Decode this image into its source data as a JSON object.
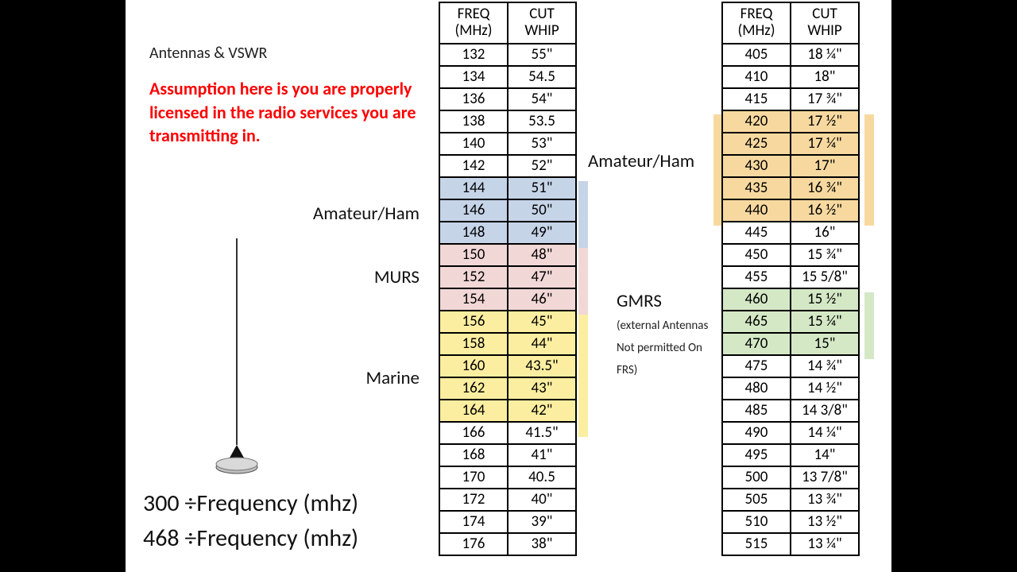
{
  "page": {
    "heading": "Antennas & VSWR",
    "warning": "Assumption here is you are properly licensed in the radio services you are transmitting in.",
    "formula1": "300 ÷Frequency (mhz)",
    "formula2": "468 ÷Frequency (mhz)"
  },
  "labels": {
    "amateur1": "Amateur/Ham",
    "murs": "MURS",
    "marine": "Marine",
    "amateur2": "Amateur/Ham",
    "gmrs": "GMRS",
    "gmrs_sub": "(external Antennas Not permitted On FRS)"
  },
  "table_headers": {
    "freq": "FREQ (MHz)",
    "cut": "CUT WHIP"
  },
  "colors": {
    "bg_page": "#ffffff",
    "bg_letterbox": "#000000",
    "warning_text": "#ff0000",
    "hl_blue": "#c6d4e8",
    "hl_pink": "#f2d7d7",
    "hl_yellow": "#fceea0",
    "hl_orange": "#f7d9a0",
    "hl_green": "#d4e8c6",
    "border": "#000000"
  },
  "table1": {
    "rows": [
      {
        "freq": "132",
        "cut": "55\"",
        "hl": ""
      },
      {
        "freq": "134",
        "cut": "54.5",
        "hl": ""
      },
      {
        "freq": "136",
        "cut": "54\"",
        "hl": ""
      },
      {
        "freq": "138",
        "cut": "53.5",
        "hl": ""
      },
      {
        "freq": "140",
        "cut": "53\"",
        "hl": ""
      },
      {
        "freq": "142",
        "cut": "52\"",
        "hl": ""
      },
      {
        "freq": "144",
        "cut": "51\"",
        "hl": "blue"
      },
      {
        "freq": "146",
        "cut": "50\"",
        "hl": "blue"
      },
      {
        "freq": "148",
        "cut": "49\"",
        "hl": "blue"
      },
      {
        "freq": "150",
        "cut": "48\"",
        "hl": "pink"
      },
      {
        "freq": "152",
        "cut": "47\"",
        "hl": "pink"
      },
      {
        "freq": "154",
        "cut": "46\"",
        "hl": "pink"
      },
      {
        "freq": "156",
        "cut": "45\"",
        "hl": "yellow"
      },
      {
        "freq": "158",
        "cut": "44\"",
        "hl": "yellow"
      },
      {
        "freq": "160",
        "cut": "43.5\"",
        "hl": "yellow"
      },
      {
        "freq": "162",
        "cut": "43\"",
        "hl": "yellow"
      },
      {
        "freq": "164",
        "cut": "42\"",
        "hl": "yellow"
      },
      {
        "freq": "166",
        "cut": "41.5\"",
        "hl": ""
      },
      {
        "freq": "168",
        "cut": "41\"",
        "hl": ""
      },
      {
        "freq": "170",
        "cut": "40.5",
        "hl": ""
      },
      {
        "freq": "172",
        "cut": "40\"",
        "hl": ""
      },
      {
        "freq": "174",
        "cut": "39\"",
        "hl": ""
      },
      {
        "freq": "176",
        "cut": "38\"",
        "hl": ""
      }
    ]
  },
  "table2": {
    "rows": [
      {
        "freq": "405",
        "cut": "18 ¼\"",
        "hl": ""
      },
      {
        "freq": "410",
        "cut": "18\"",
        "hl": ""
      },
      {
        "freq": "415",
        "cut": "17 ¾\"",
        "hl": ""
      },
      {
        "freq": "420",
        "cut": "17 ½\"",
        "hl": "orange"
      },
      {
        "freq": "425",
        "cut": "17 ¼\"",
        "hl": "orange"
      },
      {
        "freq": "430",
        "cut": "17\"",
        "hl": "orange"
      },
      {
        "freq": "435",
        "cut": "16 ¾\"",
        "hl": "orange"
      },
      {
        "freq": "440",
        "cut": "16 ½\"",
        "hl": "orange"
      },
      {
        "freq": "445",
        "cut": "16\"",
        "hl": ""
      },
      {
        "freq": "450",
        "cut": "15 ¾\"",
        "hl": ""
      },
      {
        "freq": "455",
        "cut": "15 5/8\"",
        "hl": ""
      },
      {
        "freq": "460",
        "cut": "15 ½\"",
        "hl": "green"
      },
      {
        "freq": "465",
        "cut": "15 ¼\"",
        "hl": "green"
      },
      {
        "freq": "470",
        "cut": "15\"",
        "hl": "green"
      },
      {
        "freq": "475",
        "cut": "14 ¾\"",
        "hl": ""
      },
      {
        "freq": "480",
        "cut": "14 ½\"",
        "hl": ""
      },
      {
        "freq": "485",
        "cut": "14 3/8\"",
        "hl": ""
      },
      {
        "freq": "490",
        "cut": "14 ¼\"",
        "hl": ""
      },
      {
        "freq": "495",
        "cut": "14\"",
        "hl": ""
      },
      {
        "freq": "500",
        "cut": "13 7/8\"",
        "hl": ""
      },
      {
        "freq": "505",
        "cut": "13 ¾\"",
        "hl": ""
      },
      {
        "freq": "510",
        "cut": "13 ½\"",
        "hl": ""
      },
      {
        "freq": "515",
        "cut": "13 ¼\"",
        "hl": ""
      }
    ]
  }
}
